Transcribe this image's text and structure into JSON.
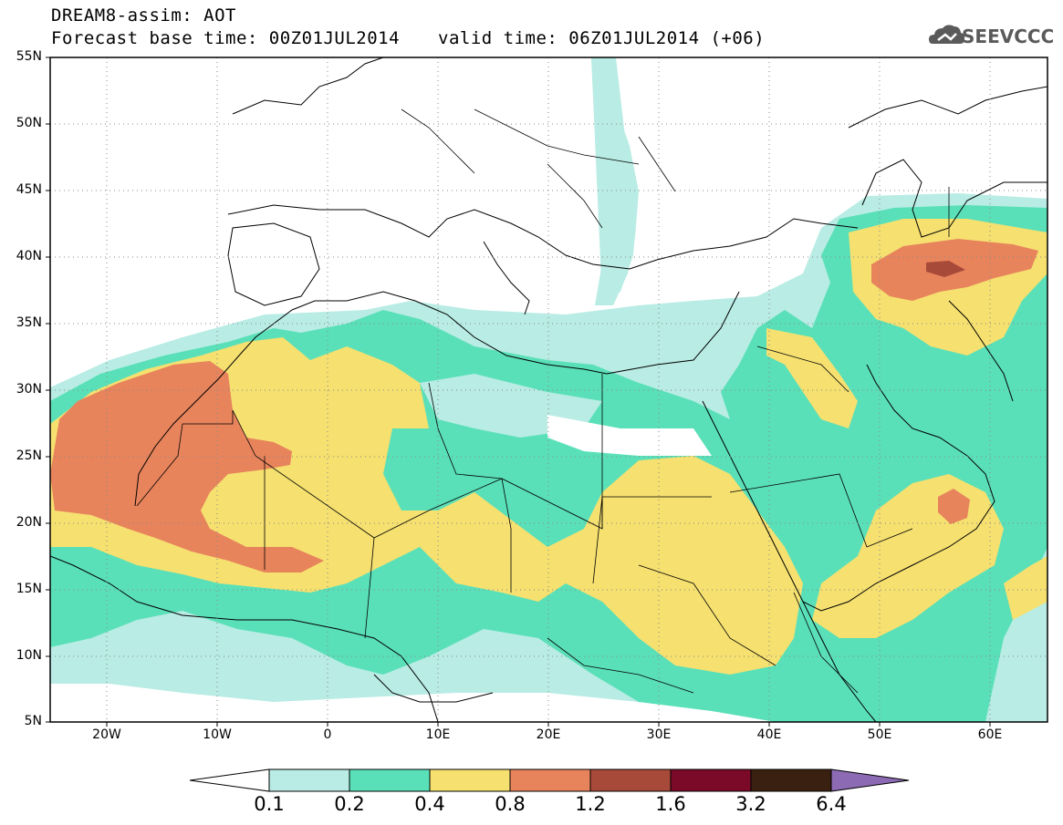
{
  "title": {
    "line1": "DREAM8-assim: AOT",
    "line2": "Forecast base time: 00Z01JUL2014",
    "valid": "valid time: 06Z01JUL2014 (+06)"
  },
  "logo": {
    "text": "SEEVCCC",
    "icon": "cloud-icon"
  },
  "map": {
    "lat_labels": [
      "55N",
      "50N",
      "45N",
      "40N",
      "35N",
      "30N",
      "25N",
      "20N",
      "15N",
      "10N",
      "5N"
    ],
    "lon_labels": [
      "20W",
      "10W",
      "0",
      "10E",
      "20E",
      "30E",
      "40E",
      "50E",
      "60E"
    ],
    "lat_range": [
      5,
      55
    ],
    "lon_range": [
      -25,
      65
    ]
  },
  "legend": {
    "levels": [
      "0.1",
      "0.2",
      "0.4",
      "0.8",
      "1.2",
      "1.6",
      "3.2",
      "6.4"
    ],
    "colors": [
      "#ffffff",
      "#b8ece4",
      "#5ae0b8",
      "#f5e070",
      "#e8845c",
      "#a84a3a",
      "#7a0a28",
      "#3a2010",
      "#8c6ab4"
    ]
  }
}
